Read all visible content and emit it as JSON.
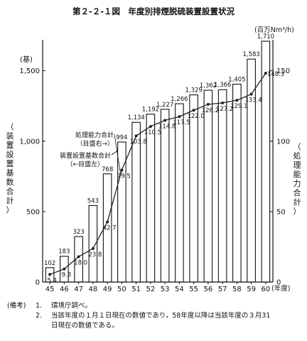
{
  "chart_data": {
    "type": "bar",
    "title": "第２-２-１図　年度別排煙脱硫装置設置状況",
    "categories": [
      "45",
      "46",
      "47",
      "48",
      "49",
      "50",
      "51",
      "52",
      "53",
      "54",
      "55",
      "56",
      "57",
      "58",
      "59",
      "60"
    ],
    "x_unit": "(年度)",
    "y_left": {
      "unit": "(基)",
      "label": "装置設置基数合計",
      "range": [
        0,
        1700
      ],
      "ticks": [
        "0",
        "500",
        "1,000",
        "1,500"
      ]
    },
    "y_right": {
      "unit": "(百万Nm³/h)",
      "label": "処理能力合計",
      "range": [
        0,
        170
      ],
      "ticks": [
        "0",
        "50",
        "100",
        "150"
      ]
    },
    "series": [
      {
        "name": "装置設置基数合計",
        "type": "bar",
        "axis": "left",
        "values": [
          102,
          183,
          323,
          543,
          768,
          994,
          1134,
          1192,
          1227,
          1266,
          1329,
          1362,
          1366,
          1405,
          1583,
          1710
        ],
        "labels": [
          "102",
          "183",
          "323",
          "543",
          "768",
          "994",
          "1,134",
          "1,192",
          "1,227",
          "1,266",
          "1,329",
          "1,362",
          "1,366",
          "1,405",
          "1,583",
          "1,710"
        ]
      },
      {
        "name": "処理能力合計",
        "type": "line",
        "axis": "right",
        "values": [
          5.4,
          9.3,
          18.0,
          23.8,
          42.7,
          79.5,
          103.8,
          110.5,
          114.8,
          117.5,
          122.0,
          126.2,
          127.2,
          129.1,
          133.4,
          148.3
        ],
        "labels": [
          "5.4",
          "9.3",
          "18.0",
          "23.8",
          "42.7",
          "79.5",
          "103.8",
          "110.5",
          "114.8",
          "117.5",
          "122.0",
          "126.2",
          "127.2",
          "129.1",
          "133.4",
          "148.3"
        ]
      }
    ],
    "annotations": {
      "line_label": [
        "処理能力合計",
        "（目盛右→）"
      ],
      "bar_label": [
        "装置設置基数合計",
        "（←目盛左）"
      ]
    },
    "colors": {
      "bar_fill": "#ffffff",
      "bar_stroke": "#111111",
      "line": "#222222"
    }
  },
  "notes": {
    "prefix": "(備考)",
    "items": [
      {
        "num": "1.",
        "text": "環境庁調べ。"
      },
      {
        "num": "2.",
        "text": "当該年度の１月１日現在の数値であり，58年度以降は当該年度の３月31"
      }
    ],
    "continuation": "日現在の数値である。"
  }
}
